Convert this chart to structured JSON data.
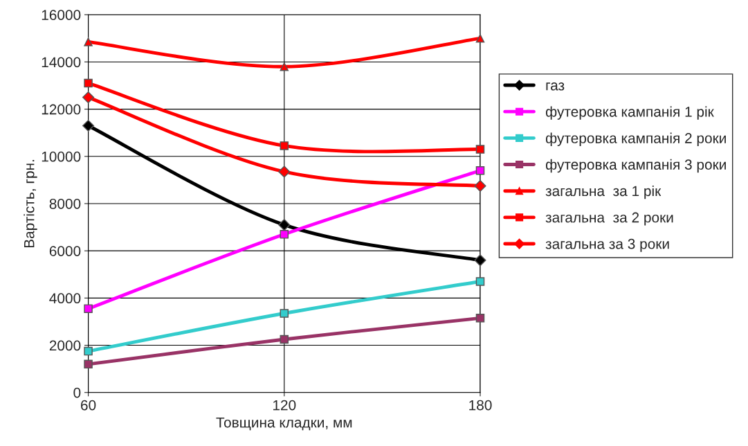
{
  "chart_data": {
    "type": "line",
    "xlabel": "Товщина кладки, мм",
    "ylabel": "Вартість, грн.",
    "x": [
      60,
      120,
      180
    ],
    "series": [
      {
        "name": "газ",
        "color": "#000000",
        "marker": "diamond",
        "values": [
          11300,
          7100,
          5600
        ]
      },
      {
        "name": "футеровка кампанія 1 рік",
        "color": "#ff00ff",
        "marker": "square",
        "values": [
          3550,
          6700,
          9400
        ]
      },
      {
        "name": "футеровка кампанія 2 роки",
        "color": "#33cccc",
        "marker": "square",
        "values": [
          1750,
          3350,
          4700
        ]
      },
      {
        "name": "футеровка кампанія 3 роки",
        "color": "#993366",
        "marker": "square",
        "values": [
          1200,
          2250,
          3150
        ]
      },
      {
        "name": "загальна  за 1 рік",
        "color": "#ff0000",
        "marker": "triangle",
        "values": [
          14850,
          13800,
          15000
        ]
      },
      {
        "name": "загальна  за 2 роки",
        "color": "#ff0000",
        "marker": "square",
        "values": [
          13100,
          10450,
          10300
        ]
      },
      {
        "name": "загальна за 3 роки",
        "color": "#ff0000",
        "marker": "diamond",
        "values": [
          12500,
          9350,
          8750
        ]
      }
    ],
    "xlim": [
      60,
      180
    ],
    "xticks": [
      60,
      120,
      180
    ],
    "ylim": [
      0,
      16000
    ],
    "yticks": [
      0,
      2000,
      4000,
      6000,
      8000,
      10000,
      12000,
      14000,
      16000
    ],
    "grid": true,
    "legend": "right"
  }
}
